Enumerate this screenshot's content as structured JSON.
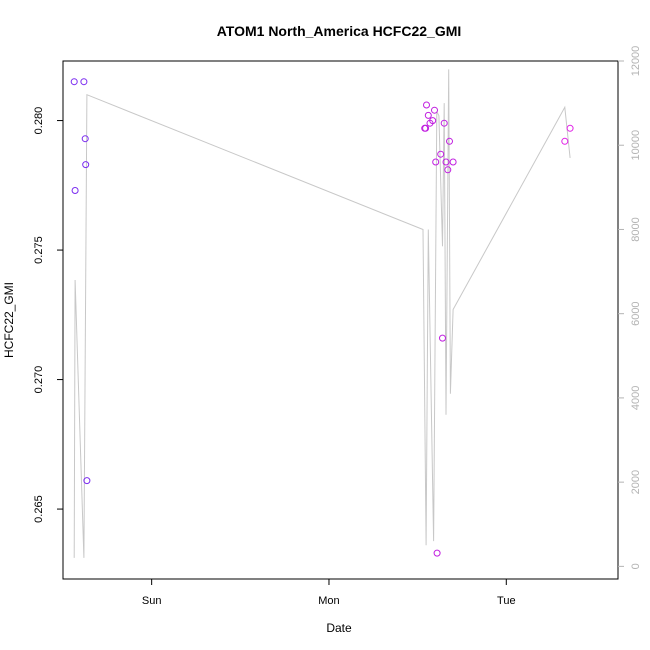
{
  "chart_data": {
    "type": "scatter",
    "title": "ATOM1 North_America HCFC22_GMI",
    "xlabel": "Date",
    "ylabel": "HCFC22_GMI",
    "xlim": [
      0.0,
      3.13
    ],
    "x_ticks": [
      {
        "value": 0.5,
        "label": "Sun"
      },
      {
        "value": 1.5,
        "label": "Mon"
      },
      {
        "value": 2.5,
        "label": "Tue"
      }
    ],
    "ylim": [
      0.2623,
      0.2823
    ],
    "y_ticks": [
      0.265,
      0.27,
      0.275,
      0.28
    ],
    "y2lim": [
      -300,
      12000
    ],
    "y2_ticks": [
      0,
      2000,
      4000,
      6000,
      8000,
      10000,
      12000
    ],
    "scatter_colors": [
      "#7b2cf0",
      "#a422e8",
      "#c11fe0",
      "#e020e6"
    ],
    "line_color": "#c8c8c8",
    "series": [
      {
        "name": "",
        "kind": "points",
        "x": [
          0.063,
          0.068,
          0.118,
          0.125,
          0.128,
          0.135,
          2.04,
          2.045,
          2.05,
          2.06,
          2.07,
          2.085,
          2.095,
          2.102,
          2.11,
          2.13,
          2.14,
          2.15,
          2.16,
          2.17,
          2.18,
          2.2,
          2.83,
          2.86
        ],
        "y": [
          0.2815,
          0.2773,
          0.2815,
          0.2793,
          0.2783,
          0.2661,
          0.2797,
          0.2797,
          0.2806,
          0.2802,
          0.2799,
          0.28,
          0.2804,
          0.2784,
          0.2633,
          0.2787,
          0.2716,
          0.2799,
          0.2784,
          0.2781,
          0.2792,
          0.2784,
          0.2792,
          0.2797
        ]
      },
      {
        "name": "",
        "kind": "line",
        "axis": "right",
        "x": [
          0.063,
          0.068,
          0.118,
          0.135,
          2.03,
          2.048,
          2.06,
          2.09,
          2.108,
          2.12,
          2.14,
          2.15,
          2.16,
          2.175,
          2.185,
          2.2,
          2.83,
          2.86
        ],
        "y": [
          200,
          6800,
          200,
          11200,
          8000,
          500,
          8000,
          600,
          10800,
          10700,
          7600,
          11000,
          3600,
          11800,
          4100,
          6100,
          10900,
          9700
        ]
      }
    ]
  }
}
